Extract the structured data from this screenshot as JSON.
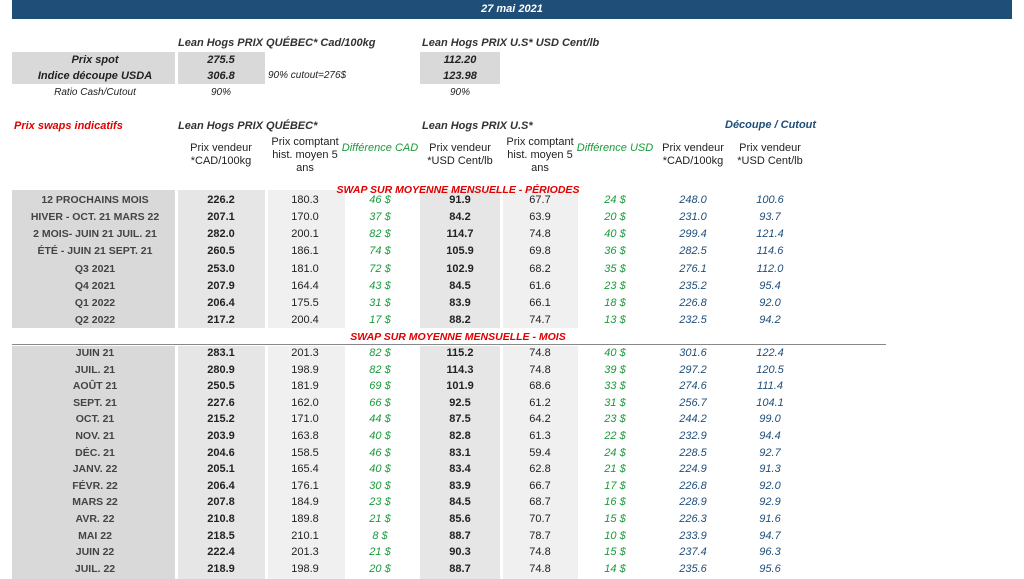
{
  "header": {
    "date": "27 mai 2021"
  },
  "summary": {
    "quebec_title": "Lean Hogs PRIX QUÉBEC* Cad/100kg",
    "us_title": "Lean Hogs PRIX U.S* USD Cent/lb",
    "rows": [
      {
        "label": "Prix spot",
        "quebec": "275.5",
        "us": "112.20"
      },
      {
        "label": "Indice découpe USDA",
        "quebec": "306.8",
        "note": "90% cutout=276$",
        "us": "123.98"
      },
      {
        "label": "Ratio Cash/Cutout",
        "quebec": "90%",
        "us": "90%"
      }
    ]
  },
  "swaps": {
    "title": "Prix swaps indicatifs",
    "quebec_group": "Lean Hogs PRIX QUÉBEC*",
    "us_group": "Lean Hogs PRIX U.S*",
    "cutout_group": "Découpe / Cutout",
    "columns": [
      "Prix vendeur *CAD/100kg",
      "Prix comptant hist. moyen 5 ans",
      "Différence CAD",
      "Prix vendeur *USD Cent/lb",
      "Prix comptant hist. moyen 5 ans",
      "Différence USD",
      "Prix vendeur *CAD/100kg",
      "Prix vendeur *USD Cent/lb"
    ],
    "sections": [
      {
        "title": "SWAP SUR MOYENNE MENSUELLE - PÉRIODES",
        "rows": [
          {
            "label": "12 PROCHAINS MOIS",
            "cells": [
              "226.2",
              "180.3",
              "46 $",
              "91.9",
              "67.7",
              "24 $",
              "248.0",
              "100.6"
            ]
          },
          {
            "label": "HIVER - OCT. 21 MARS 22",
            "cells": [
              "207.1",
              "170.0",
              "37 $",
              "84.2",
              "63.9",
              "20 $",
              "231.0",
              "93.7"
            ]
          },
          {
            "label": "2 MOIS- JUIN 21 JUIL. 21",
            "cells": [
              "282.0",
              "200.1",
              "82 $",
              "114.7",
              "74.8",
              "40 $",
              "299.4",
              "121.4"
            ]
          },
          {
            "label": "ÉTÉ - JUIN 21 SEPT. 21",
            "cells": [
              "260.5",
              "186.1",
              "74 $",
              "105.9",
              "69.8",
              "36 $",
              "282.5",
              "114.6"
            ]
          },
          {
            "label": "Q3 2021",
            "cells": [
              "253.0",
              "181.0",
              "72 $",
              "102.9",
              "68.2",
              "35 $",
              "276.1",
              "112.0"
            ]
          },
          {
            "label": "Q4 2021",
            "cells": [
              "207.9",
              "164.4",
              "43 $",
              "84.5",
              "61.6",
              "23 $",
              "235.2",
              "95.4"
            ]
          },
          {
            "label": "Q1 2022",
            "cells": [
              "206.4",
              "175.5",
              "31 $",
              "83.9",
              "66.1",
              "18 $",
              "226.8",
              "92.0"
            ]
          },
          {
            "label": "Q2 2022",
            "cells": [
              "217.2",
              "200.4",
              "17 $",
              "88.2",
              "74.7",
              "13 $",
              "232.5",
              "94.2"
            ]
          }
        ]
      },
      {
        "title": "SWAP SUR MOYENNE MENSUELLE - MOIS",
        "rows": [
          {
            "label": "JUIN 21",
            "cells": [
              "283.1",
              "201.3",
              "82 $",
              "115.2",
              "74.8",
              "40 $",
              "301.6",
              "122.4"
            ]
          },
          {
            "label": "JUIL. 21",
            "cells": [
              "280.9",
              "198.9",
              "82 $",
              "114.3",
              "74.8",
              "39 $",
              "297.2",
              "120.5"
            ]
          },
          {
            "label": "AOÛT 21",
            "cells": [
              "250.5",
              "181.9",
              "69 $",
              "101.9",
              "68.6",
              "33 $",
              "274.6",
              "111.4"
            ]
          },
          {
            "label": "SEPT. 21",
            "cells": [
              "227.6",
              "162.0",
              "66 $",
              "92.5",
              "61.2",
              "31 $",
              "256.7",
              "104.1"
            ]
          },
          {
            "label": "OCT. 21",
            "cells": [
              "215.2",
              "171.0",
              "44 $",
              "87.5",
              "64.2",
              "23 $",
              "244.2",
              "99.0"
            ]
          },
          {
            "label": "NOV. 21",
            "cells": [
              "203.9",
              "163.8",
              "40 $",
              "82.8",
              "61.3",
              "22 $",
              "232.9",
              "94.4"
            ]
          },
          {
            "label": "DÉC. 21",
            "cells": [
              "204.6",
              "158.5",
              "46 $",
              "83.1",
              "59.4",
              "24 $",
              "228.5",
              "92.7"
            ]
          },
          {
            "label": "JANV. 22",
            "cells": [
              "205.1",
              "165.4",
              "40 $",
              "83.4",
              "62.8",
              "21 $",
              "224.9",
              "91.3"
            ]
          },
          {
            "label": "FÉVR. 22",
            "cells": [
              "206.4",
              "176.1",
              "30 $",
              "83.9",
              "66.7",
              "17 $",
              "226.8",
              "92.0"
            ]
          },
          {
            "label": "MARS 22",
            "cells": [
              "207.8",
              "184.9",
              "23 $",
              "84.5",
              "68.7",
              "16 $",
              "228.9",
              "92.9"
            ]
          },
          {
            "label": "AVR. 22",
            "cells": [
              "210.8",
              "189.8",
              "21 $",
              "85.6",
              "70.7",
              "15 $",
              "226.3",
              "91.6"
            ]
          },
          {
            "label": "MAI 22",
            "cells": [
              "218.5",
              "210.1",
              "8 $",
              "88.7",
              "78.7",
              "10 $",
              "233.9",
              "94.7"
            ]
          },
          {
            "label": "JUIN 22",
            "cells": [
              "222.4",
              "201.3",
              "21 $",
              "90.3",
              "74.8",
              "15 $",
              "237.4",
              "96.3"
            ]
          },
          {
            "label": "JUIL. 22",
            "cells": [
              "218.9",
              "198.9",
              "20 $",
              "88.7",
              "74.8",
              "14 $",
              "235.6",
              "95.6"
            ]
          }
        ]
      }
    ]
  }
}
